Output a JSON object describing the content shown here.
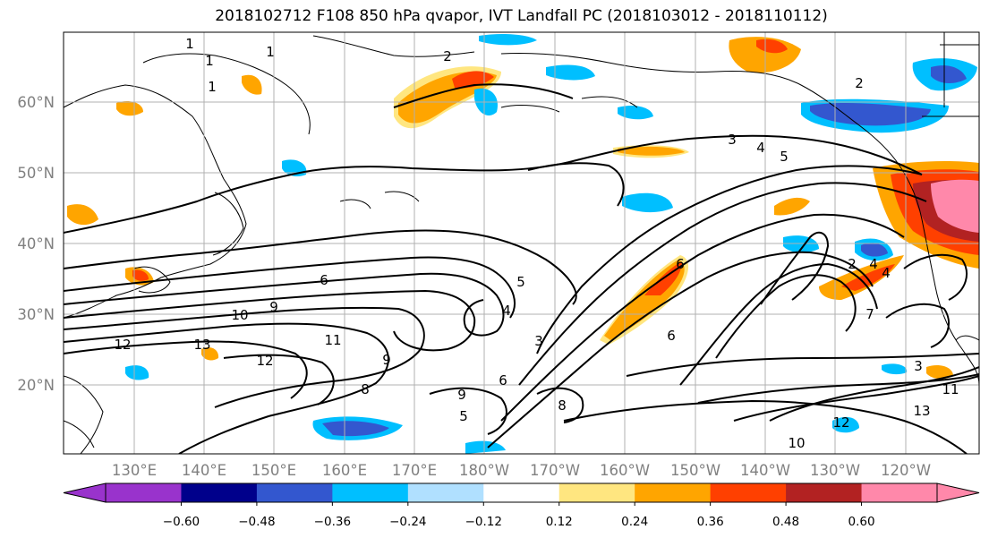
{
  "title": "2018102712 F108 850 hPa qvapor, IVT Landfall PC (2018103012 - 2018110112)",
  "map": {
    "lat_labels": [
      "20°N",
      "30°N",
      "40°N",
      "50°N",
      "60°N"
    ],
    "lon_labels": [
      "130°E",
      "140°E",
      "150°E",
      "160°E",
      "170°E",
      "180°W",
      "170°W",
      "160°W",
      "150°W",
      "140°W",
      "130°W",
      "120°W"
    ],
    "contour_labels": [
      "1",
      "1",
      "1",
      "1",
      "2",
      "2",
      "3",
      "4",
      "5",
      "6",
      "5",
      "6",
      "4",
      "10",
      "9",
      "12",
      "13",
      "11",
      "12",
      "9",
      "8",
      "9",
      "6",
      "8",
      "5",
      "6",
      "4",
      "7",
      "3",
      "13",
      "12",
      "10",
      "11",
      "2",
      "4",
      "3"
    ]
  },
  "colorbar": {
    "ticks": [
      "−0.60",
      "−0.48",
      "−0.36",
      "−0.24",
      "−0.12",
      "0.12",
      "0.24",
      "0.36",
      "0.48",
      "0.60"
    ],
    "colors": [
      "#9933cc",
      "#00008b",
      "#3357cf",
      "#00bfff",
      "#b0e0ff",
      "#ffffff",
      "#ffe680",
      "#ffa500",
      "#ff4000",
      "#b22222",
      "#ff88aa",
      "#ff88aa"
    ]
  },
  "colors": {
    "orange": "#ffa500",
    "red": "#ff4000",
    "darkred": "#b22222",
    "pink": "#ff88aa",
    "yellow": "#ffe680",
    "lightblue": "#b0e0ff",
    "cyan": "#00bfff",
    "blue": "#3357cf",
    "navy": "#00008b"
  }
}
